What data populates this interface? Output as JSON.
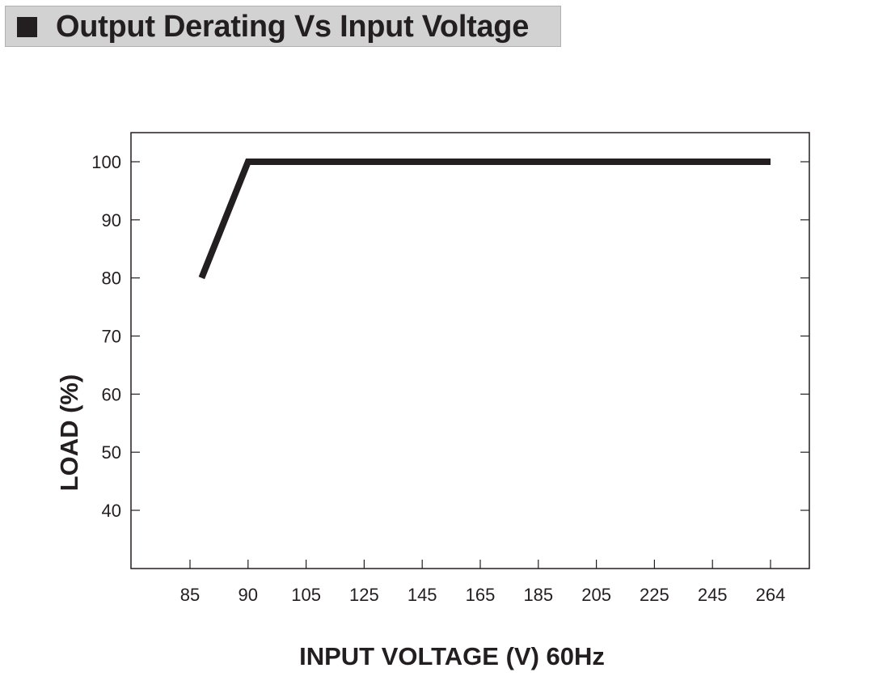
{
  "header": {
    "title": "Output Derating Vs Input Voltage"
  },
  "chart_data": {
    "type": "line",
    "title": "Output Derating Vs Input Voltage",
    "xlabel": "INPUT VOLTAGE (V) 60Hz",
    "ylabel": "LOAD (%)",
    "categories": [
      "85",
      "90",
      "105",
      "125",
      "145",
      "165",
      "185",
      "205",
      "225",
      "245",
      "264"
    ],
    "yticks": [
      "100",
      "90",
      "80",
      "70",
      "60",
      "50",
      "40"
    ],
    "ylim": [
      30,
      105
    ],
    "grid": false,
    "series": [
      {
        "x": [
          "86",
          "90",
          "264"
        ],
        "values": [
          80,
          100,
          100
        ]
      }
    ],
    "colors": {
      "line": "#231f20",
      "frame": "#231f20",
      "title_bar": "#d2d2d2"
    }
  }
}
